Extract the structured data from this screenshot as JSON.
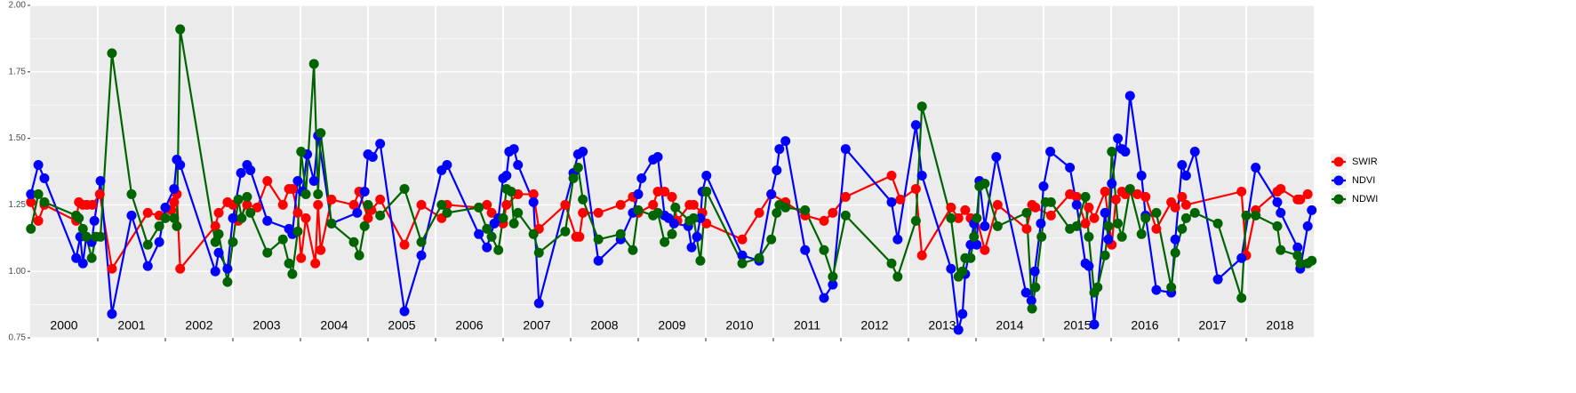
{
  "chart_data": {
    "type": "line",
    "xlim": [
      2000,
      2019
    ],
    "ylim": [
      0.75,
      2.0
    ],
    "yticks": [
      {
        "value": 0.75,
        "label": "0.75"
      },
      {
        "value": 1.0,
        "label": "1.00"
      },
      {
        "value": 1.25,
        "label": "1.25"
      },
      {
        "value": 1.5,
        "label": "1.50"
      },
      {
        "value": 1.75,
        "label": "1.75"
      },
      {
        "value": 2.0,
        "label": "2.00"
      }
    ],
    "xticks": [
      {
        "value": 2000.5,
        "label": "2000"
      },
      {
        "value": 2001.5,
        "label": "2001"
      },
      {
        "value": 2002.5,
        "label": "2002"
      },
      {
        "value": 2003.5,
        "label": "2003"
      },
      {
        "value": 2004.5,
        "label": "2004"
      },
      {
        "value": 2005.5,
        "label": "2005"
      },
      {
        "value": 2006.5,
        "label": "2006"
      },
      {
        "value": 2007.5,
        "label": "2007"
      },
      {
        "value": 2008.5,
        "label": "2008"
      },
      {
        "value": 2009.5,
        "label": "2009"
      },
      {
        "value": 2010.5,
        "label": "2010"
      },
      {
        "value": 2011.5,
        "label": "2011"
      },
      {
        "value": 2012.5,
        "label": "2012"
      },
      {
        "value": 2013.5,
        "label": "2013"
      },
      {
        "value": 2014.5,
        "label": "2014"
      },
      {
        "value": 2015.5,
        "label": "2015"
      },
      {
        "value": 2016.5,
        "label": "2016"
      },
      {
        "value": 2017.5,
        "label": "2017"
      },
      {
        "value": 2018.5,
        "label": "2018"
      }
    ],
    "year_boundaries": [
      2001,
      2002,
      2003,
      2004,
      2005,
      2006,
      2007,
      2008,
      2009,
      2010,
      2011,
      2012,
      2013,
      2014,
      2015,
      2016,
      2017,
      2018
    ],
    "grid": true,
    "legend": "right",
    "series": [
      {
        "name": "SWIR",
        "color": "#ff0000",
        "x": [
          2000.01,
          2000.12,
          2000.21,
          2000.68,
          2000.72,
          2000.78,
          2000.84,
          2000.92,
          2001.03,
          2001.21,
          2001.74,
          2001.91,
          2002.09,
          2002.13,
          2002.17,
          2002.22,
          2002.74,
          2002.79,
          2002.92,
          2003.0,
          2003.08,
          2003.21,
          2003.36,
          2003.51,
          2003.74,
          2003.83,
          2003.88,
          2003.96,
          2004.01,
          2004.08,
          2004.22,
          2004.26,
          2004.3,
          2004.46,
          2004.79,
          2004.87,
          2005.0,
          2005.05,
          2005.18,
          2005.54,
          2005.79,
          2006.09,
          2006.17,
          2006.64,
          2006.76,
          2006.83,
          2007.0,
          2007.05,
          2007.22,
          2007.45,
          2007.53,
          2007.92,
          2008.08,
          2008.13,
          2008.18,
          2008.41,
          2008.74,
          2008.92,
          2009.0,
          2009.22,
          2009.29,
          2009.39,
          2009.5,
          2009.58,
          2009.76,
          2009.82,
          2009.95,
          2010.01,
          2010.54,
          2010.79,
          2010.97,
          2011.18,
          2011.47,
          2011.75,
          2011.88,
          2012.07,
          2012.75,
          2012.88,
          2013.11,
          2013.2,
          2013.63,
          2013.74,
          2013.84,
          2013.92,
          2014.01,
          2014.13,
          2014.32,
          2014.75,
          2014.83,
          2014.88,
          2015.11,
          2015.39,
          2015.49,
          2015.62,
          2015.67,
          2015.75,
          2015.91,
          2016.01,
          2016.07,
          2016.16,
          2016.21,
          2016.39,
          2016.51,
          2016.67,
          2016.89,
          2016.95,
          2017.05,
          2017.11,
          2017.93,
          2018.0,
          2018.14,
          2018.46,
          2018.51,
          2018.76,
          2018.8,
          2018.91
        ],
        "values": [
          1.26,
          1.19,
          1.25,
          1.19,
          1.26,
          1.25,
          1.25,
          1.25,
          1.29,
          1.01,
          1.22,
          1.21,
          1.23,
          1.26,
          1.29,
          1.01,
          1.17,
          1.22,
          1.26,
          1.25,
          1.19,
          1.25,
          1.24,
          1.34,
          1.25,
          1.31,
          1.31,
          1.22,
          1.05,
          1.2,
          1.03,
          1.25,
          1.08,
          1.27,
          1.25,
          1.3,
          1.2,
          1.23,
          1.27,
          1.1,
          1.25,
          1.2,
          1.25,
          1.24,
          1.25,
          1.22,
          1.18,
          1.25,
          1.29,
          1.29,
          1.16,
          1.25,
          1.13,
          1.13,
          1.22,
          1.22,
          1.25,
          1.28,
          1.22,
          1.25,
          1.3,
          1.3,
          1.28,
          1.19,
          1.25,
          1.25,
          1.22,
          1.18,
          1.12,
          1.22,
          1.29,
          1.26,
          1.21,
          1.19,
          1.22,
          1.28,
          1.36,
          1.27,
          1.31,
          1.06,
          1.24,
          1.2,
          1.23,
          1.2,
          1.2,
          1.08,
          1.25,
          1.16,
          1.25,
          1.24,
          1.21,
          1.29,
          1.28,
          1.18,
          1.24,
          1.2,
          1.3,
          1.1,
          1.27,
          1.3,
          1.29,
          1.29,
          1.28,
          1.16,
          1.26,
          1.24,
          1.28,
          1.25,
          1.3,
          1.06,
          1.23,
          1.3,
          1.31,
          1.27,
          1.27,
          1.29
        ]
      },
      {
        "name": "NDVI",
        "color": "#0000ff",
        "x": [
          2000.01,
          2000.12,
          2000.21,
          2000.68,
          2000.74,
          2000.78,
          2000.83,
          2000.91,
          2000.95,
          2001.04,
          2001.21,
          2001.5,
          2001.74,
          2001.91,
          2002.0,
          2002.13,
          2002.17,
          2002.22,
          2002.74,
          2002.79,
          2002.92,
          2003.0,
          2003.12,
          2003.21,
          2003.26,
          2003.51,
          2003.83,
          2003.88,
          2003.96,
          2004.03,
          2004.1,
          2004.2,
          2004.26,
          2004.46,
          2004.84,
          2004.95,
          2005.0,
          2005.07,
          2005.18,
          2005.54,
          2005.79,
          2006.09,
          2006.17,
          2006.64,
          2006.76,
          2006.87,
          2006.93,
          2007.0,
          2007.05,
          2007.09,
          2007.16,
          2007.22,
          2007.45,
          2007.53,
          2008.04,
          2008.11,
          2008.18,
          2008.41,
          2008.74,
          2008.92,
          2009.0,
          2009.05,
          2009.22,
          2009.29,
          2009.39,
          2009.45,
          2009.53,
          2009.74,
          2009.79,
          2009.87,
          2009.92,
          2009.95,
          2010.01,
          2010.54,
          2010.79,
          2010.97,
          2011.05,
          2011.09,
          2011.18,
          2011.47,
          2011.75,
          2011.88,
          2012.07,
          2012.75,
          2012.84,
          2013.11,
          2013.2,
          2013.63,
          2013.74,
          2013.8,
          2013.84,
          2013.92,
          2013.97,
          2014.01,
          2014.05,
          2014.13,
          2014.3,
          2014.74,
          2014.82,
          2014.87,
          2014.96,
          2015.0,
          2015.1,
          2015.39,
          2015.49,
          2015.62,
          2015.67,
          2015.75,
          2015.91,
          2015.96,
          2016.01,
          2016.1,
          2016.16,
          2016.21,
          2016.28,
          2016.45,
          2016.51,
          2016.67,
          2016.89,
          2016.95,
          2017.05,
          2017.11,
          2017.24,
          2017.58,
          2017.93,
          2018.14,
          2018.46,
          2018.51,
          2018.76,
          2018.8,
          2018.91,
          2018.97
        ],
        "values": [
          1.29,
          1.4,
          1.35,
          1.05,
          1.13,
          1.03,
          1.13,
          1.11,
          1.19,
          1.34,
          0.84,
          1.21,
          1.02,
          1.11,
          1.24,
          1.31,
          1.42,
          1.4,
          1.0,
          1.07,
          1.01,
          1.2,
          1.37,
          1.4,
          1.38,
          1.19,
          1.16,
          1.14,
          1.34,
          1.3,
          1.44,
          1.34,
          1.51,
          1.18,
          1.22,
          1.3,
          1.44,
          1.43,
          1.48,
          0.85,
          1.06,
          1.38,
          1.4,
          1.14,
          1.09,
          1.18,
          1.2,
          1.35,
          1.36,
          1.45,
          1.46,
          1.4,
          1.26,
          0.88,
          1.37,
          1.44,
          1.45,
          1.04,
          1.12,
          1.22,
          1.29,
          1.35,
          1.42,
          1.43,
          1.21,
          1.2,
          1.18,
          1.17,
          1.09,
          1.13,
          1.2,
          1.3,
          1.36,
          1.06,
          1.04,
          1.29,
          1.38,
          1.46,
          1.49,
          1.08,
          0.9,
          0.95,
          1.46,
          1.26,
          1.12,
          1.55,
          1.36,
          1.01,
          0.78,
          0.84,
          0.99,
          1.1,
          1.18,
          1.1,
          1.34,
          1.17,
          1.43,
          0.92,
          0.89,
          1.0,
          1.18,
          1.32,
          1.45,
          1.39,
          1.25,
          1.03,
          1.02,
          0.8,
          1.22,
          1.12,
          1.33,
          1.5,
          1.46,
          1.45,
          1.66,
          1.36,
          1.21,
          0.93,
          0.92,
          1.12,
          1.4,
          1.36,
          1.45,
          0.97,
          1.05,
          1.39,
          1.26,
          1.22,
          1.09,
          1.01,
          1.17,
          1.23
        ]
      },
      {
        "name": "NDWI",
        "color": "#006400",
        "x": [
          2000.01,
          2000.12,
          2000.21,
          2000.68,
          2000.72,
          2000.78,
          2000.83,
          2000.91,
          2000.97,
          2001.04,
          2001.21,
          2001.5,
          2001.74,
          2001.91,
          2002.0,
          2002.13,
          2002.17,
          2002.22,
          2002.74,
          2002.79,
          2002.92,
          2003.0,
          2003.08,
          2003.13,
          2003.21,
          2003.26,
          2003.51,
          2003.74,
          2003.83,
          2003.88,
          2003.96,
          2004.01,
          2004.08,
          2004.2,
          2004.26,
          2004.3,
          2004.46,
          2004.79,
          2004.87,
          2004.95,
          2005.0,
          2005.18,
          2005.54,
          2005.79,
          2006.09,
          2006.17,
          2006.64,
          2006.76,
          2006.83,
          2006.93,
          2007.0,
          2007.05,
          2007.12,
          2007.16,
          2007.22,
          2007.45,
          2007.53,
          2007.92,
          2008.04,
          2008.11,
          2008.18,
          2008.41,
          2008.74,
          2008.92,
          2009.0,
          2009.22,
          2009.29,
          2009.39,
          2009.5,
          2009.55,
          2009.76,
          2009.82,
          2009.92,
          2010.01,
          2010.54,
          2010.79,
          2010.97,
          2011.05,
          2011.09,
          2011.18,
          2011.47,
          2011.75,
          2011.88,
          2012.07,
          2012.75,
          2012.84,
          2013.11,
          2013.2,
          2013.63,
          2013.74,
          2013.8,
          2013.84,
          2013.92,
          2013.97,
          2014.01,
          2014.05,
          2014.13,
          2014.32,
          2014.75,
          2014.83,
          2014.88,
          2014.97,
          2015.03,
          2015.11,
          2015.39,
          2015.49,
          2015.62,
          2015.67,
          2015.75,
          2015.8,
          2015.91,
          2015.96,
          2016.01,
          2016.1,
          2016.16,
          2016.28,
          2016.45,
          2016.51,
          2016.67,
          2016.89,
          2016.95,
          2017.05,
          2017.11,
          2017.24,
          2017.58,
          2017.93,
          2018.0,
          2018.14,
          2018.46,
          2018.51,
          2018.76,
          2018.8,
          2018.91,
          2018.97
        ],
        "values": [
          1.16,
          1.29,
          1.26,
          1.21,
          1.2,
          1.16,
          1.13,
          1.05,
          1.13,
          1.13,
          1.82,
          1.29,
          1.1,
          1.17,
          1.2,
          1.2,
          1.17,
          1.91,
          1.11,
          1.14,
          0.96,
          1.11,
          1.27,
          1.2,
          1.28,
          1.22,
          1.07,
          1.12,
          1.03,
          0.99,
          1.15,
          1.45,
          1.29,
          1.78,
          1.29,
          1.52,
          1.18,
          1.11,
          1.06,
          1.17,
          1.25,
          1.21,
          1.31,
          1.11,
          1.25,
          1.22,
          1.24,
          1.16,
          1.13,
          1.08,
          1.2,
          1.31,
          1.3,
          1.18,
          1.22,
          1.14,
          1.07,
          1.15,
          1.35,
          1.39,
          1.27,
          1.12,
          1.14,
          1.08,
          1.23,
          1.21,
          1.22,
          1.11,
          1.14,
          1.24,
          1.19,
          1.2,
          1.04,
          1.3,
          1.03,
          1.05,
          1.12,
          1.22,
          1.25,
          1.24,
          1.23,
          1.08,
          0.98,
          1.21,
          1.03,
          0.98,
          1.19,
          1.62,
          1.2,
          0.98,
          1.0,
          1.05,
          1.05,
          1.13,
          1.2,
          1.32,
          1.33,
          1.17,
          1.22,
          0.86,
          0.94,
          1.13,
          1.26,
          1.26,
          1.16,
          1.17,
          1.28,
          1.13,
          0.92,
          0.94,
          1.06,
          1.17,
          1.45,
          1.18,
          1.13,
          1.31,
          1.14,
          1.2,
          1.22,
          0.94,
          1.07,
          1.16,
          1.2,
          1.22,
          1.18,
          0.9,
          1.21,
          1.21,
          1.17,
          1.08,
          1.06,
          1.03,
          1.03,
          1.04
        ]
      }
    ]
  }
}
